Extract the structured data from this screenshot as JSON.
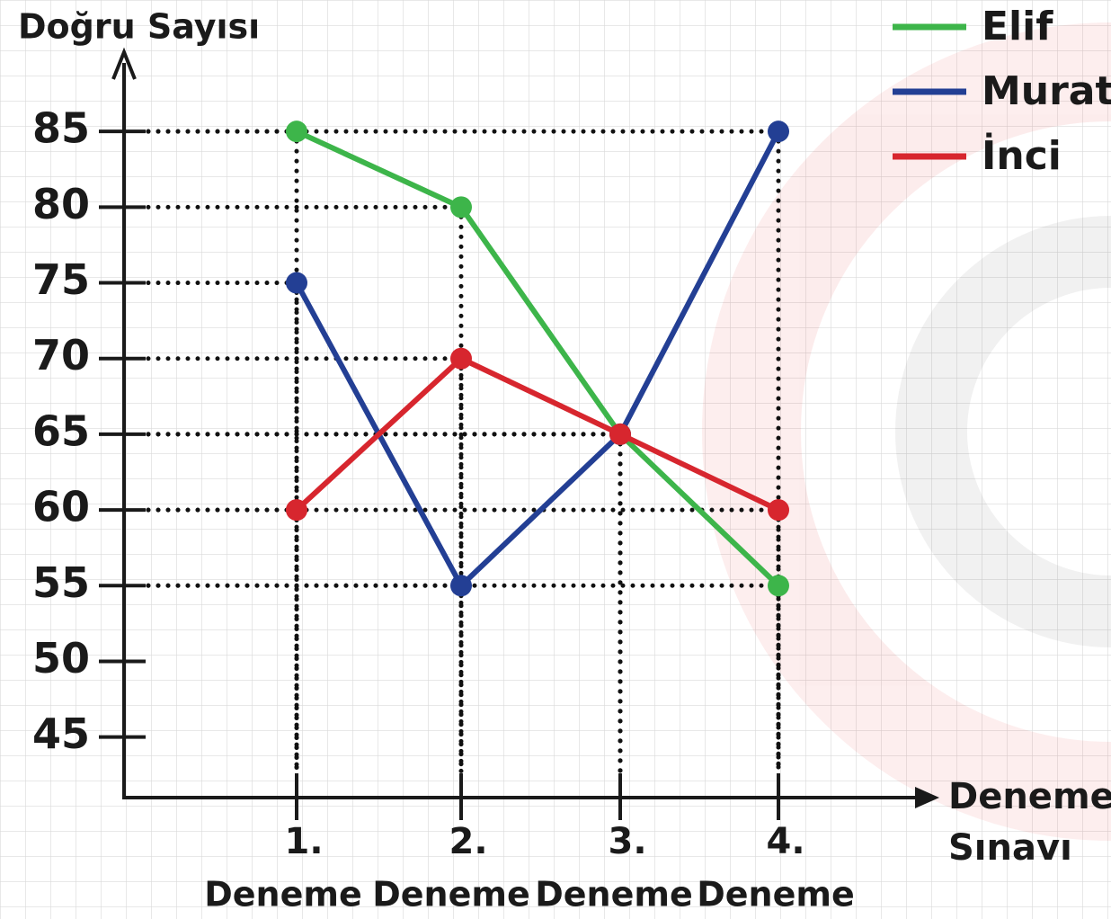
{
  "chart_data": {
    "type": "line",
    "ylabel": "Doğru Sayısı",
    "xlabel_lines": [
      "Deneme",
      "Sınavı"
    ],
    "categories": [
      "1.",
      "2.",
      "3.",
      "4."
    ],
    "category_sublabels": [
      "Deneme",
      "Deneme",
      "Deneme",
      "Deneme"
    ],
    "series": [
      {
        "name": "Elif",
        "color": "#3db54a",
        "values": [
          85,
          80,
          65,
          55
        ]
      },
      {
        "name": "Murat",
        "color": "#233f94",
        "values": [
          75,
          55,
          65,
          85
        ]
      },
      {
        "name": "İnci",
        "color": "#d7262e",
        "values": [
          60,
          70,
          65,
          60
        ]
      }
    ],
    "ylim": [
      41,
      90
    ],
    "yticks": [
      45,
      50,
      55,
      60,
      65,
      70,
      75,
      80,
      85
    ],
    "legend": "upper right"
  }
}
